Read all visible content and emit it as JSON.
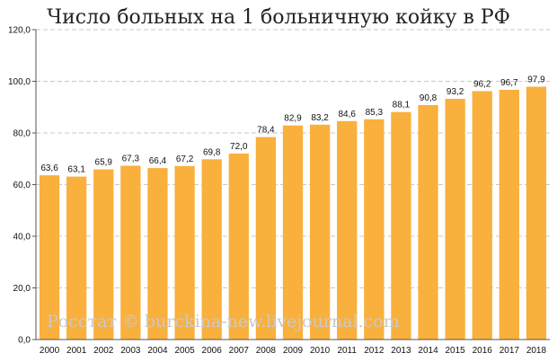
{
  "chart_data": {
    "type": "bar",
    "title": "Число больных на 1 больничную койку в РФ",
    "xlabel": "",
    "ylabel": "",
    "categories": [
      "2000",
      "2001",
      "2002",
      "2003",
      "2004",
      "2005",
      "2006",
      "2007",
      "2008",
      "2009",
      "2010",
      "2011",
      "2012",
      "2013",
      "2014",
      "2015",
      "2016",
      "2017",
      "2018"
    ],
    "values": [
      63.6,
      63.1,
      65.9,
      67.3,
      66.4,
      67.2,
      69.8,
      72.0,
      78.4,
      82.9,
      83.2,
      84.6,
      85.3,
      88.1,
      90.8,
      93.2,
      96.2,
      96.7,
      97.9
    ],
    "data_labels": [
      "63,6",
      "63,1",
      "65,9",
      "67,3",
      "66,4",
      "67,2",
      "69,8",
      "72,0",
      "78,4",
      "82,9",
      "83,2",
      "84,6",
      "85,3",
      "88,1",
      "90,8",
      "93,2",
      "96,2",
      "96,7",
      "97,9"
    ],
    "ylim": [
      0,
      120
    ],
    "yticks": [
      0,
      20,
      40,
      60,
      80,
      100,
      120
    ],
    "ytick_labels": [
      "0,0",
      "20,0",
      "40,0",
      "60,0",
      "80,0",
      "100,0",
      "120,0"
    ],
    "grid": true,
    "legend": "none",
    "bar_color": "#F9B03C",
    "grid_color": "#C8C8C8",
    "watermark": "Росстат © burckina-new.livejournal.com"
  }
}
